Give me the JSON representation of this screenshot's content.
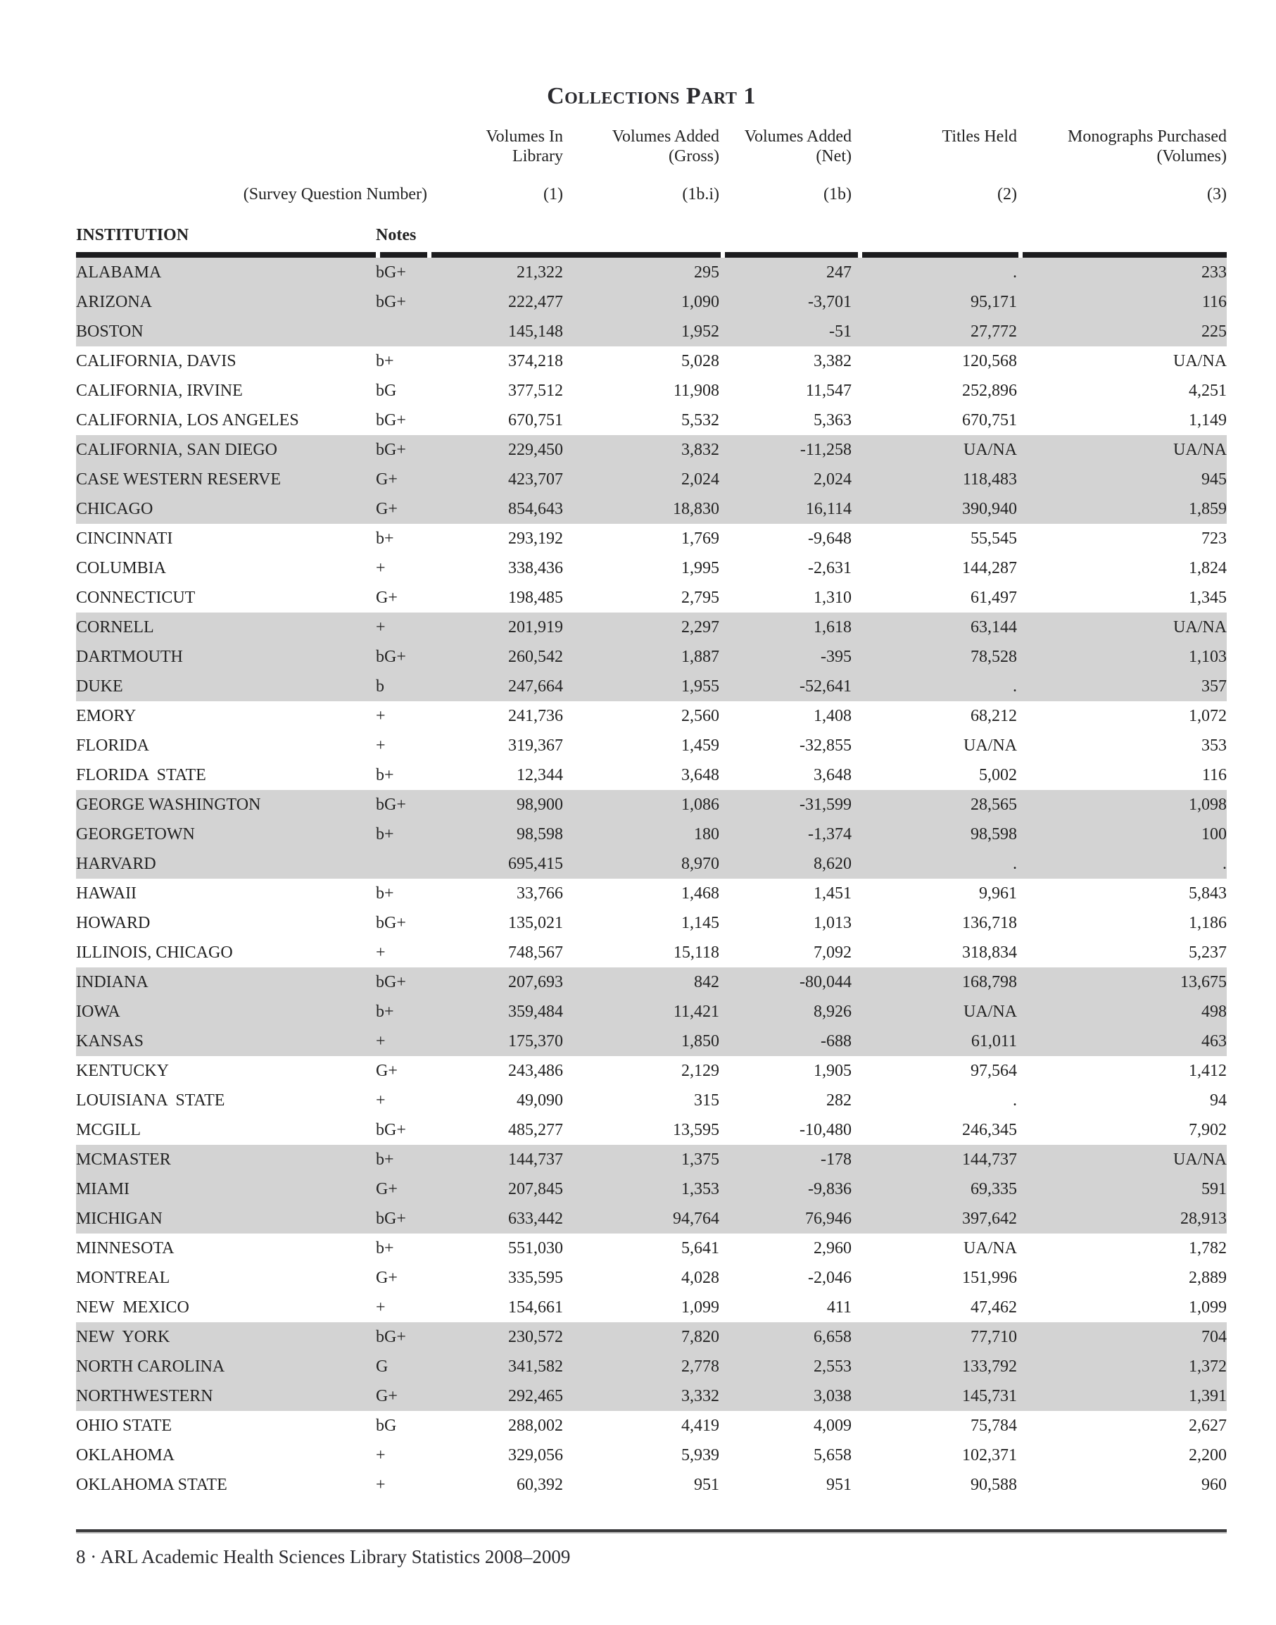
{
  "title": "Collections Part 1",
  "colors": {
    "row_shade": "#d3d3d3",
    "rule_black": "#1c1c1e",
    "text": "#232323"
  },
  "header": {
    "survey_label": "(Survey Question Number)",
    "institution_label": "INSTITUTION",
    "notes_label": "Notes",
    "columns": [
      {
        "line1": "Volumes In",
        "line2": "Library",
        "survey": "(1)"
      },
      {
        "line1": "Volumes Added",
        "line2": "(Gross)",
        "survey": "(1b.i)"
      },
      {
        "line1": "Volumes Added",
        "line2": "(Net)",
        "survey": "(1b)"
      },
      {
        "line1": "Titles Held",
        "line2": "",
        "survey": "(2)"
      },
      {
        "line1": "Monographs Purchased",
        "line2": "(Volumes)",
        "survey": "(3)"
      }
    ]
  },
  "table": {
    "rows": [
      {
        "institution": "ALABAMA",
        "notes": "bG+",
        "values": [
          "21,322",
          "295",
          "247",
          ".",
          "233"
        ]
      },
      {
        "institution": "ARIZONA",
        "notes": "bG+",
        "values": [
          "222,477",
          "1,090",
          "-3,701",
          "95,171",
          "116"
        ]
      },
      {
        "institution": "BOSTON",
        "notes": "",
        "values": [
          "145,148",
          "1,952",
          "-51",
          "27,772",
          "225"
        ]
      },
      {
        "institution": "CALIFORNIA, DAVIS",
        "notes": "b+",
        "values": [
          "374,218",
          "5,028",
          "3,382",
          "120,568",
          "UA/NA"
        ]
      },
      {
        "institution": "CALIFORNIA, IRVINE",
        "notes": "bG",
        "values": [
          "377,512",
          "11,908",
          "11,547",
          "252,896",
          "4,251"
        ]
      },
      {
        "institution": "CALIFORNIA, LOS ANGELES",
        "notes": "bG+",
        "values": [
          "670,751",
          "5,532",
          "5,363",
          "670,751",
          "1,149"
        ]
      },
      {
        "institution": "CALIFORNIA, SAN DIEGO",
        "notes": "bG+",
        "values": [
          "229,450",
          "3,832",
          "-11,258",
          "UA/NA",
          "UA/NA"
        ]
      },
      {
        "institution": "CASE WESTERN RESERVE",
        "notes": "G+",
        "values": [
          "423,707",
          "2,024",
          "2,024",
          "118,483",
          "945"
        ]
      },
      {
        "institution": "CHICAGO",
        "notes": "G+",
        "values": [
          "854,643",
          "18,830",
          "16,114",
          "390,940",
          "1,859"
        ]
      },
      {
        "institution": "CINCINNATI",
        "notes": "b+",
        "values": [
          "293,192",
          "1,769",
          "-9,648",
          "55,545",
          "723"
        ]
      },
      {
        "institution": "COLUMBIA",
        "notes": "+",
        "values": [
          "338,436",
          "1,995",
          "-2,631",
          "144,287",
          "1,824"
        ]
      },
      {
        "institution": "CONNECTICUT",
        "notes": "G+",
        "values": [
          "198,485",
          "2,795",
          "1,310",
          "61,497",
          "1,345"
        ]
      },
      {
        "institution": "CORNELL",
        "notes": "+",
        "values": [
          "201,919",
          "2,297",
          "1,618",
          "63,144",
          "UA/NA"
        ]
      },
      {
        "institution": "DARTMOUTH",
        "notes": "bG+",
        "values": [
          "260,542",
          "1,887",
          "-395",
          "78,528",
          "1,103"
        ]
      },
      {
        "institution": "DUKE",
        "notes": "b",
        "values": [
          "247,664",
          "1,955",
          "-52,641",
          ".",
          "357"
        ]
      },
      {
        "institution": "EMORY",
        "notes": "+",
        "values": [
          "241,736",
          "2,560",
          "1,408",
          "68,212",
          "1,072"
        ]
      },
      {
        "institution": "FLORIDA",
        "notes": "+",
        "values": [
          "319,367",
          "1,459",
          "-32,855",
          "UA/NA",
          "353"
        ]
      },
      {
        "institution": "FLORIDA  STATE",
        "notes": "b+",
        "values": [
          "12,344",
          "3,648",
          "3,648",
          "5,002",
          "116"
        ]
      },
      {
        "institution": "GEORGE WASHINGTON",
        "notes": "bG+",
        "values": [
          "98,900",
          "1,086",
          "-31,599",
          "28,565",
          "1,098"
        ]
      },
      {
        "institution": "GEORGETOWN",
        "notes": "b+",
        "values": [
          "98,598",
          "180",
          "-1,374",
          "98,598",
          "100"
        ]
      },
      {
        "institution": "HARVARD",
        "notes": "",
        "values": [
          "695,415",
          "8,970",
          "8,620",
          ".",
          "."
        ]
      },
      {
        "institution": "HAWAII",
        "notes": "b+",
        "values": [
          "33,766",
          "1,468",
          "1,451",
          "9,961",
          "5,843"
        ]
      },
      {
        "institution": "HOWARD",
        "notes": "bG+",
        "values": [
          "135,021",
          "1,145",
          "1,013",
          "136,718",
          "1,186"
        ]
      },
      {
        "institution": "ILLINOIS, CHICAGO",
        "notes": "+",
        "values": [
          "748,567",
          "15,118",
          "7,092",
          "318,834",
          "5,237"
        ]
      },
      {
        "institution": "INDIANA",
        "notes": "bG+",
        "values": [
          "207,693",
          "842",
          "-80,044",
          "168,798",
          "13,675"
        ]
      },
      {
        "institution": "IOWA",
        "notes": "b+",
        "values": [
          "359,484",
          "11,421",
          "8,926",
          "UA/NA",
          "498"
        ]
      },
      {
        "institution": "KANSAS",
        "notes": "+",
        "values": [
          "175,370",
          "1,850",
          "-688",
          "61,011",
          "463"
        ]
      },
      {
        "institution": "KENTUCKY",
        "notes": "G+",
        "values": [
          "243,486",
          "2,129",
          "1,905",
          "97,564",
          "1,412"
        ]
      },
      {
        "institution": "LOUISIANA  STATE",
        "notes": "+",
        "values": [
          "49,090",
          "315",
          "282",
          ".",
          "94"
        ]
      },
      {
        "institution": "MCGILL",
        "notes": "bG+",
        "values": [
          "485,277",
          "13,595",
          "-10,480",
          "246,345",
          "7,902"
        ]
      },
      {
        "institution": "MCMASTER",
        "notes": "b+",
        "values": [
          "144,737",
          "1,375",
          "-178",
          "144,737",
          "UA/NA"
        ]
      },
      {
        "institution": "MIAMI",
        "notes": "G+",
        "values": [
          "207,845",
          "1,353",
          "-9,836",
          "69,335",
          "591"
        ]
      },
      {
        "institution": "MICHIGAN",
        "notes": "bG+",
        "values": [
          "633,442",
          "94,764",
          "76,946",
          "397,642",
          "28,913"
        ]
      },
      {
        "institution": "MINNESOTA",
        "notes": "b+",
        "values": [
          "551,030",
          "5,641",
          "2,960",
          "UA/NA",
          "1,782"
        ]
      },
      {
        "institution": "MONTREAL",
        "notes": "G+",
        "values": [
          "335,595",
          "4,028",
          "-2,046",
          "151,996",
          "2,889"
        ]
      },
      {
        "institution": "NEW  MEXICO",
        "notes": "+",
        "values": [
          "154,661",
          "1,099",
          "411",
          "47,462",
          "1,099"
        ]
      },
      {
        "institution": "NEW  YORK",
        "notes": "bG+",
        "values": [
          "230,572",
          "7,820",
          "6,658",
          "77,710",
          "704"
        ]
      },
      {
        "institution": "NORTH CAROLINA",
        "notes": "G",
        "values": [
          "341,582",
          "2,778",
          "2,553",
          "133,792",
          "1,372"
        ]
      },
      {
        "institution": "NORTHWESTERN",
        "notes": "G+",
        "values": [
          "292,465",
          "3,332",
          "3,038",
          "145,731",
          "1,391"
        ]
      },
      {
        "institution": "OHIO STATE",
        "notes": "bG",
        "values": [
          "288,002",
          "4,419",
          "4,009",
          "75,784",
          "2,627"
        ]
      },
      {
        "institution": "OKLAHOMA",
        "notes": "+",
        "values": [
          "329,056",
          "5,939",
          "5,658",
          "102,371",
          "2,200"
        ]
      },
      {
        "institution": "OKLAHOMA STATE",
        "notes": "+",
        "values": [
          "60,392",
          "951",
          "951",
          "90,588",
          "960"
        ]
      }
    ]
  },
  "footer": {
    "text": "8 · ARL Academic Health Sciences Library Statistics 2008–2009"
  }
}
